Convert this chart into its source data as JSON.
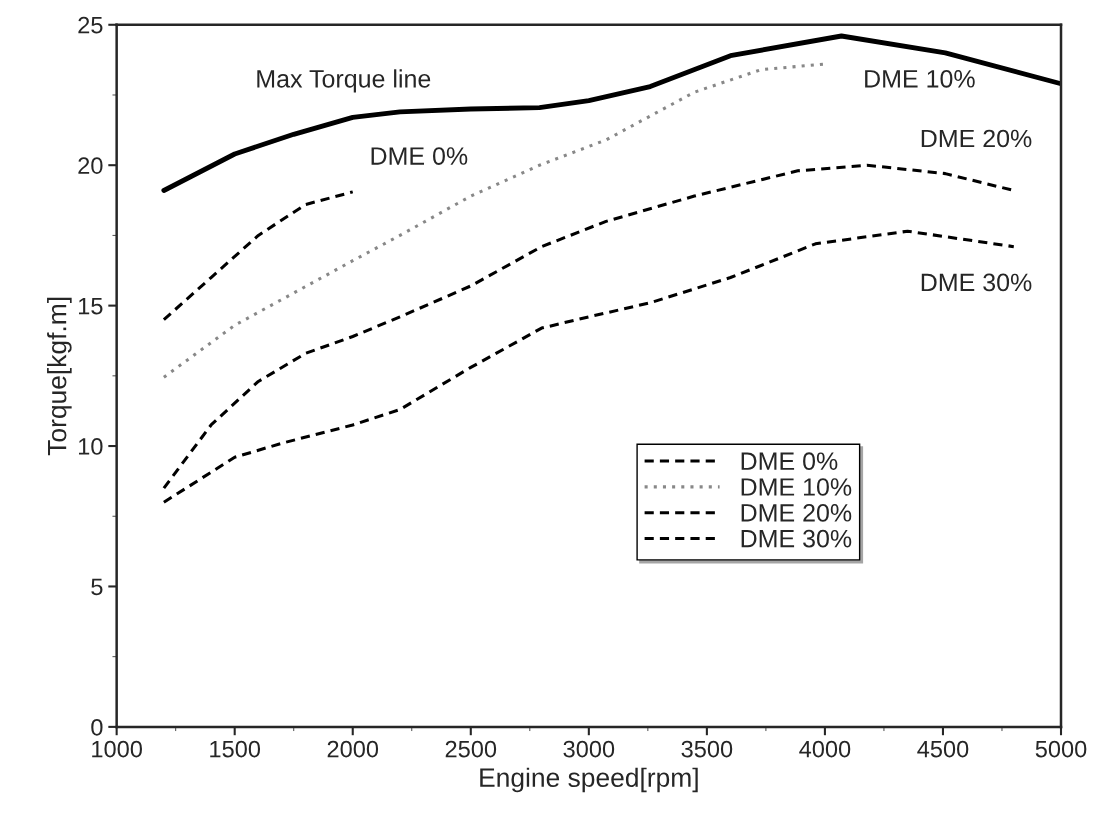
{
  "chart_data": {
    "type": "line",
    "xlabel": "Engine speed[rpm]",
    "ylabel": "Torque[kgf.m]",
    "xlim": [
      1000,
      5000
    ],
    "xticks": [
      1000,
      1500,
      2000,
      2500,
      3000,
      3500,
      4000,
      4500,
      5000
    ],
    "ylim": [
      0,
      25
    ],
    "yticks": [
      0,
      5,
      10,
      15,
      20,
      25
    ],
    "grid": false,
    "legend": "lower right",
    "marker": "none",
    "series": [
      {
        "color": "#000000",
        "line_style": "solid",
        "x": [
          1200,
          1500,
          1750,
          2000,
          2200,
          2500,
          2791,
          3000,
          3260,
          3600,
          4070,
          4510,
          5000
        ],
        "values": [
          19.1,
          20.4,
          21.1,
          21.7,
          21.9,
          22.0,
          22.05,
          22.3,
          22.8,
          23.9,
          24.6,
          24.0,
          22.9
        ]
      },
      {
        "name": "DME 0%",
        "color": "#000000",
        "line_style": "dashed",
        "x": [
          1200,
          1400,
          1600,
          1800,
          2000
        ],
        "values": [
          14.5,
          16.0,
          17.5,
          18.6,
          19.05
        ]
      },
      {
        "name": "DME 10%",
        "color": "#888888",
        "line_style": "dotted",
        "x": [
          1200,
          1500,
          2000,
          2200,
          2500,
          2791,
          3073,
          3447,
          3729,
          3995
        ],
        "values": [
          12.45,
          14.3,
          16.6,
          17.5,
          18.9,
          20.0,
          20.9,
          22.6,
          23.4,
          23.6
        ]
      },
      {
        "name": "DME 20%",
        "color": "#000000",
        "line_style": "dashed",
        "x": [
          1200,
          1400,
          1600,
          1800,
          2000,
          2200,
          2500,
          2800,
          3073,
          3447,
          3885,
          4178,
          4510,
          4800
        ],
        "values": [
          8.5,
          10.75,
          12.3,
          13.3,
          13.9,
          14.6,
          15.7,
          17.1,
          18.0,
          18.9,
          19.8,
          20.0,
          19.7,
          19.1
        ]
      },
      {
        "name": "DME 30%",
        "color": "#000000",
        "line_style": "dashed",
        "x": [
          1200,
          1500,
          1700,
          2000,
          2200,
          2500,
          2800,
          3000,
          3260,
          3600,
          3960,
          4350,
          4800
        ],
        "values": [
          8.0,
          9.6,
          10.1,
          10.75,
          11.3,
          12.8,
          14.2,
          14.6,
          15.1,
          16.0,
          17.2,
          17.65,
          17.1
        ]
      }
    ],
    "annotations": [
      "Max Torque line",
      "DME 0%",
      "DME 10%",
      "DME 20%",
      "DME 30%"
    ]
  }
}
